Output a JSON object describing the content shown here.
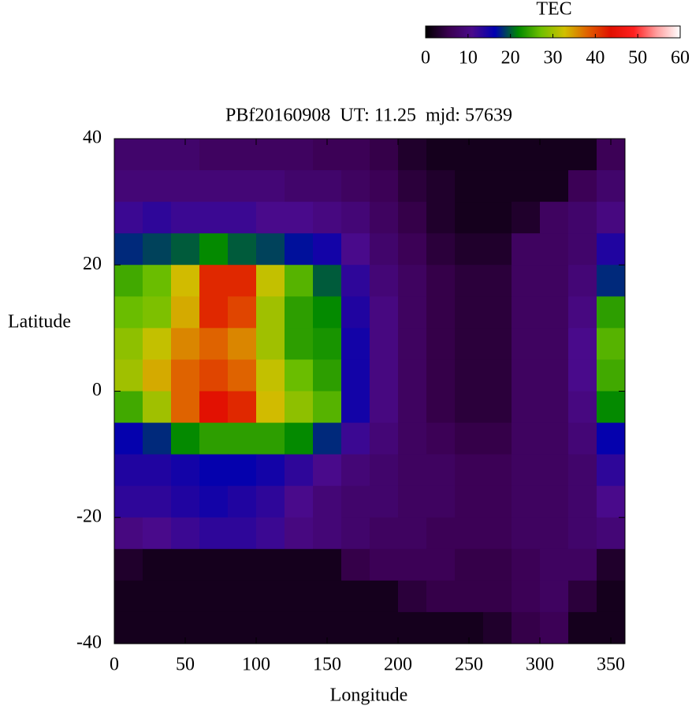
{
  "chart_data": {
    "type": "heatmap",
    "title": "PBf20160908  UT: 11.25  mjd: 57639",
    "x_label": "Longitude",
    "y_label": "Latitude",
    "x": [
      10,
      30,
      50,
      70,
      90,
      110,
      130,
      150,
      170,
      190,
      210,
      230,
      250,
      270,
      290,
      310,
      330,
      350
    ],
    "y": [
      37.5,
      32.5,
      27.5,
      22.5,
      17.5,
      12.5,
      7.5,
      2.5,
      -2.5,
      -7.5,
      -12.5,
      -17.5,
      -22.5,
      -27.5,
      -32.5,
      -37.5
    ],
    "z": [
      [
        8,
        8,
        8,
        7,
        7,
        7,
        7,
        6,
        6,
        5,
        3,
        2,
        2,
        2,
        2,
        2,
        2,
        6
      ],
      [
        9,
        9,
        9,
        9,
        9,
        9,
        8,
        8,
        7,
        6,
        4,
        3,
        2,
        2,
        2,
        2,
        6,
        8
      ],
      [
        12,
        13,
        12,
        12,
        12,
        11,
        11,
        10,
        9,
        7,
        5,
        3,
        2,
        2,
        3,
        7,
        8,
        10
      ],
      [
        18,
        19,
        20,
        22,
        20,
        19,
        17,
        15,
        11,
        8,
        6,
        4,
        3,
        3,
        7,
        7,
        8,
        14
      ],
      [
        25,
        27,
        33,
        42,
        42,
        32,
        26,
        20,
        13,
        9,
        7,
        5,
        4,
        4,
        7,
        7,
        9,
        18
      ],
      [
        27,
        28,
        34,
        42,
        40,
        30,
        24,
        22,
        14,
        10,
        7,
        5,
        4,
        4,
        7,
        7,
        10,
        24
      ],
      [
        29,
        32,
        36,
        38,
        36,
        30,
        24,
        23,
        15,
        10,
        7,
        5,
        4,
        4,
        7,
        7,
        11,
        26
      ],
      [
        30,
        34,
        38,
        40,
        38,
        32,
        27,
        24,
        15,
        10,
        7,
        5,
        4,
        4,
        7,
        7,
        11,
        25
      ],
      [
        25,
        30,
        38,
        44,
        42,
        33,
        29,
        26,
        15,
        10,
        7,
        5,
        4,
        4,
        7,
        7,
        10,
        22
      ],
      [
        16,
        18,
        22,
        24,
        24,
        24,
        22,
        18,
        12,
        9,
        7,
        6,
        5,
        5,
        7,
        7,
        9,
        16
      ],
      [
        14,
        14,
        15,
        16,
        16,
        15,
        13,
        11,
        9,
        8,
        7,
        7,
        6,
        6,
        7,
        7,
        8,
        13
      ],
      [
        13,
        13,
        14,
        15,
        14,
        13,
        11,
        9,
        8,
        8,
        7,
        7,
        6,
        6,
        7,
        7,
        8,
        11
      ],
      [
        10,
        11,
        12,
        13,
        13,
        12,
        10,
        9,
        8,
        7,
        7,
        6,
        6,
        6,
        7,
        7,
        8,
        9
      ],
      [
        3,
        2,
        2,
        2,
        2,
        2,
        2,
        2,
        5,
        6,
        6,
        6,
        5,
        5,
        6,
        7,
        7,
        3
      ],
      [
        2,
        2,
        2,
        2,
        2,
        2,
        2,
        2,
        2,
        2,
        4,
        5,
        5,
        5,
        6,
        7,
        4,
        2
      ],
      [
        2,
        2,
        2,
        2,
        2,
        2,
        2,
        2,
        2,
        2,
        2,
        2,
        2,
        3,
        5,
        6,
        2,
        2
      ]
    ],
    "xlim": [
      0,
      360
    ],
    "ylim": [
      -40,
      40
    ],
    "xticks": [
      0,
      50,
      100,
      150,
      200,
      250,
      300,
      350
    ],
    "yticks": [
      -40,
      -20,
      0,
      20,
      40
    ],
    "colorbar_label": "TEC",
    "zlim": [
      0,
      60
    ],
    "zticks": [
      0,
      10,
      20,
      30,
      40,
      50,
      60
    ],
    "colors": [
      "#000000",
      "#3a0050",
      "#4a0a8a",
      "#0000b0",
      "#008800",
      "#70c000",
      "#d0c000",
      "#e06000",
      "#e01000",
      "#ff2020",
      "#ffa0a0",
      "#ffffff"
    ]
  }
}
